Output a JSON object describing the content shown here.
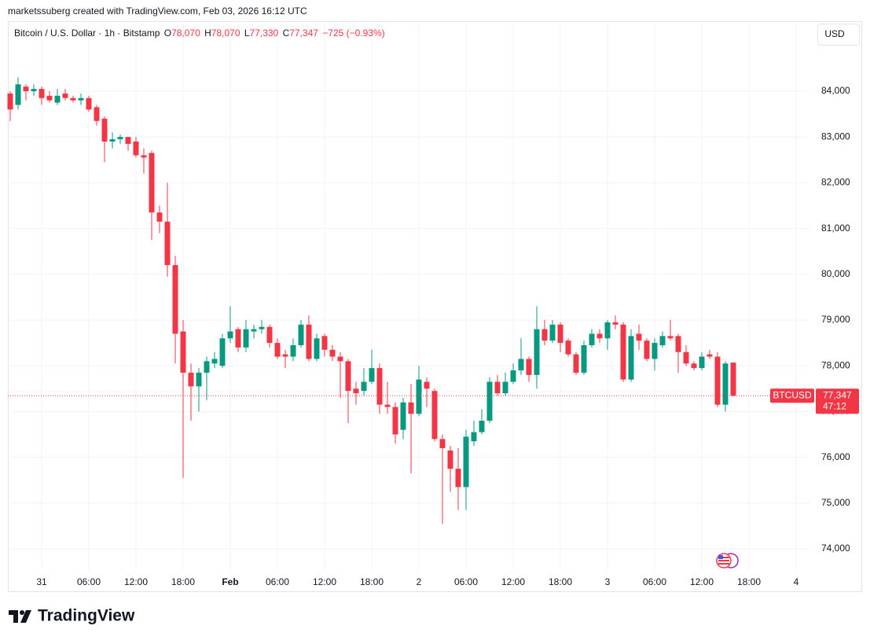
{
  "attribution": "marketssuberg created with TradingView.com, Feb 03, 2026 16:12 UTC",
  "currency_button": "USD",
  "brand": "TradingView",
  "chart_data": {
    "type": "candlestick",
    "header": {
      "symbol": "Bitcoin / U.S. Dollar · 1h · Bitstamp",
      "open_label": "O",
      "open": "78,070",
      "high_label": "H",
      "high": "78,070",
      "low_label": "L",
      "low": "77,330",
      "close_label": "C",
      "close": "77,347",
      "change": "−725 (−0.93%)"
    },
    "price_label": {
      "symbol": "BTCUSD",
      "price": "77,347",
      "countdown": "47:12"
    },
    "up_color": "#089981",
    "down_color": "#f23645",
    "x": [
      -4,
      -3,
      -2,
      -1,
      0,
      1,
      2,
      3,
      4,
      5,
      6,
      7,
      8,
      9,
      10,
      11,
      12,
      13,
      14,
      15,
      16,
      17,
      18,
      19,
      20,
      21,
      22,
      23,
      24,
      25,
      26,
      27,
      28,
      29,
      30,
      31,
      32,
      33,
      34,
      35,
      36,
      37,
      38,
      39,
      40,
      41,
      42,
      43,
      44,
      45,
      46,
      47,
      48,
      49,
      50,
      51,
      52,
      53,
      54,
      55,
      56,
      57,
      58,
      59,
      60,
      61,
      62,
      63,
      64,
      65,
      66,
      67,
      68,
      69,
      70,
      71,
      72,
      73,
      74,
      75,
      76,
      77,
      78,
      79,
      80,
      81,
      82,
      83,
      84,
      85,
      86,
      87,
      88
    ],
    "open": [
      83950,
      83700,
      84100,
      84000,
      84050,
      83900,
      83750,
      83950,
      83850,
      83800,
      83850,
      83650,
      83400,
      82900,
      82950,
      83000,
      82900,
      82600,
      82650,
      81350,
      81150,
      80200,
      78750,
      77850,
      77550,
      77850,
      78050,
      78000,
      78600,
      78800,
      78400,
      78750,
      78800,
      78850,
      78500,
      78250,
      78200,
      78450,
      78900,
      78150,
      78650,
      78350,
      78200,
      78100,
      77500,
      77450,
      77650,
      77950,
      77150,
      77100,
      76600,
      77200,
      76950,
      77650,
      77450,
      76400,
      76150,
      75750,
      75350,
      76350,
      76550,
      76800,
      77650,
      77400,
      77650,
      77900,
      78150,
      77800,
      78800,
      78550,
      78900,
      78550,
      78250,
      77850,
      78450,
      78700,
      78600,
      78950,
      78900,
      77700,
      78700,
      78550,
      78150,
      78450,
      78650,
      78650,
      78300,
      78050,
      77950,
      78250,
      78200,
      77150,
      78070
    ],
    "high": [
      84000,
      84300,
      84150,
      84150,
      84100,
      84000,
      84050,
      84050,
      83900,
      83950,
      83900,
      83700,
      83450,
      83100,
      83050,
      83000,
      83000,
      82750,
      82700,
      81500,
      82000,
      80400,
      79000,
      78050,
      77950,
      78200,
      78300,
      78700,
      79300,
      78850,
      79000,
      78900,
      79000,
      78900,
      78600,
      78350,
      78600,
      79000,
      79100,
      78700,
      78700,
      78450,
      78300,
      78150,
      77650,
      77950,
      78350,
      78050,
      77650,
      77200,
      77300,
      77600,
      78000,
      77750,
      77500,
      76500,
      76250,
      76200,
      76600,
      76800,
      77050,
      77750,
      77800,
      77850,
      78050,
      78600,
      78200,
      79300,
      79000,
      79000,
      78950,
      78600,
      78300,
      78550,
      78800,
      78800,
      79000,
      79100,
      78950,
      78800,
      78900,
      78600,
      78600,
      78750,
      79000,
      78700,
      78450,
      78100,
      78300,
      78350,
      78300,
      78100,
      78070
    ],
    "low": [
      83350,
      83600,
      83800,
      83900,
      83700,
      83750,
      83700,
      83800,
      83750,
      83700,
      83550,
      83250,
      82450,
      82750,
      82850,
      82700,
      82550,
      82200,
      80750,
      80900,
      79950,
      78050,
      75550,
      76800,
      77000,
      77250,
      77950,
      77950,
      78500,
      78300,
      78300,
      78600,
      78700,
      78400,
      78150,
      77950,
      78100,
      78400,
      78100,
      78100,
      78200,
      78100,
      77300,
      76750,
      77150,
      77350,
      77600,
      76950,
      76950,
      76300,
      76400,
      75650,
      76900,
      77100,
      76350,
      74550,
      75250,
      74850,
      74850,
      76250,
      76500,
      76750,
      77350,
      77350,
      77600,
      77800,
      77650,
      77500,
      78450,
      78500,
      78300,
      78200,
      77800,
      77800,
      78400,
      78500,
      78350,
      78800,
      77650,
      77650,
      78350,
      78100,
      77900,
      78400,
      78550,
      77850,
      78000,
      77900,
      77900,
      78150,
      77100,
      77000,
      77330
    ],
    "close": [
      83600,
      84150,
      84000,
      84050,
      83850,
      83800,
      83900,
      83850,
      83800,
      83850,
      83600,
      83350,
      82900,
      82950,
      83000,
      82850,
      82600,
      82550,
      81350,
      81150,
      80200,
      78700,
      77850,
      77550,
      77850,
      78100,
      78150,
      78600,
      78750,
      78400,
      78800,
      78800,
      78850,
      78500,
      78200,
      78200,
      78450,
      78900,
      78150,
      78600,
      78350,
      78200,
      78100,
      77450,
      77400,
      77650,
      77950,
      77150,
      77100,
      76500,
      77200,
      76950,
      77700,
      77500,
      76400,
      76200,
      75750,
      75350,
      76450,
      76550,
      76800,
      77650,
      77400,
      77650,
      77900,
      78150,
      77800,
      78800,
      78550,
      78900,
      78500,
      78250,
      77850,
      78450,
      78700,
      78600,
      78950,
      78900,
      77700,
      78650,
      78550,
      78150,
      78500,
      78650,
      78600,
      78300,
      78050,
      77950,
      78200,
      78200,
      77150,
      78050,
      77347
    ],
    "xlim": [
      -4.3,
      97.7
    ],
    "xticks": [
      {
        "value": 0,
        "label": "31"
      },
      {
        "value": 6,
        "label": "06:00"
      },
      {
        "value": 12,
        "label": "12:00"
      },
      {
        "value": 18,
        "label": "18:00"
      },
      {
        "value": 24,
        "label": "Feb"
      },
      {
        "value": 30,
        "label": "06:00"
      },
      {
        "value": 36,
        "label": "12:00"
      },
      {
        "value": 42,
        "label": "18:00"
      },
      {
        "value": 48,
        "label": "2"
      },
      {
        "value": 54,
        "label": "06:00"
      },
      {
        "value": 60,
        "label": "12:00"
      },
      {
        "value": 66,
        "label": "18:00"
      },
      {
        "value": 72,
        "label": "3"
      },
      {
        "value": 78,
        "label": "06:00"
      },
      {
        "value": 84,
        "label": "12:00"
      },
      {
        "value": 90,
        "label": "18:00"
      },
      {
        "value": 96,
        "label": "4"
      }
    ],
    "ylim": [
      73536,
      85048
    ],
    "yticks": [
      {
        "value": 74000,
        "label": "74,000"
      },
      {
        "value": 75000,
        "label": "75,000"
      },
      {
        "value": 76000,
        "label": "76,000"
      },
      {
        "value": 77000,
        "label": "77,000"
      },
      {
        "value": 78000,
        "label": "78,000"
      },
      {
        "value": 79000,
        "label": "79,000"
      },
      {
        "value": 80000,
        "label": "80,000"
      },
      {
        "value": 81000,
        "label": "81,000"
      },
      {
        "value": 82000,
        "label": "82,000"
      },
      {
        "value": 83000,
        "label": "83,000"
      },
      {
        "value": 84000,
        "label": "84,000"
      }
    ],
    "grid": true
  }
}
